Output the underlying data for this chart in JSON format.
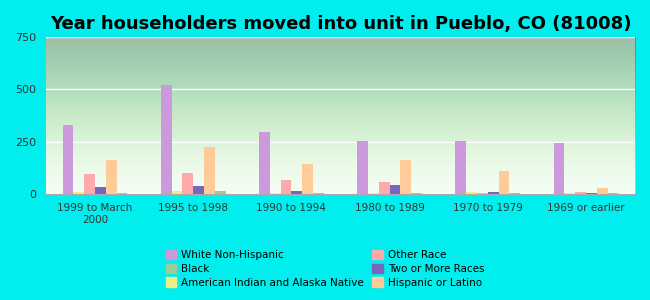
{
  "title": "Year householders moved into unit in Pueblo, CO (81008)",
  "categories": [
    "1999 to March\n2000",
    "1995 to 1998",
    "1990 to 1994",
    "1980 to 1989",
    "1970 to 1979",
    "1969 or earlier"
  ],
  "series_order": [
    "White Non-Hispanic",
    "American Indian and Alaska Native",
    "Other Race",
    "Two or More Races",
    "Hispanic or Latino",
    "Black"
  ],
  "series": {
    "White Non-Hispanic": [
      330,
      520,
      295,
      255,
      255,
      245
    ],
    "American Indian and Alaska Native": [
      8,
      15,
      5,
      5,
      10,
      3
    ],
    "Other Race": [
      95,
      100,
      65,
      55,
      5,
      8
    ],
    "Two or More Races": [
      30,
      35,
      15,
      40,
      10,
      5
    ],
    "Hispanic or Latino": [
      160,
      225,
      140,
      160,
      110,
      25
    ],
    "Black": [
      5,
      15,
      5,
      5,
      5,
      3
    ]
  },
  "colors": {
    "White Non-Hispanic": "#cc99dd",
    "American Indian and Alaska Native": "#eeee88",
    "Two or More Races": "#7766bb",
    "Black": "#99cc99",
    "Other Race": "#ffaaaa",
    "Hispanic or Latino": "#ffcc99"
  },
  "ylim": [
    0,
    750
  ],
  "yticks": [
    0,
    250,
    500,
    750
  ],
  "background_color": "#00eeee",
  "title_fontsize": 13,
  "bar_width": 0.11,
  "legend_order": [
    "White Non-Hispanic",
    "Black",
    "American Indian and Alaska Native",
    "Other Race",
    "Two or More Races",
    "Hispanic or Latino"
  ]
}
